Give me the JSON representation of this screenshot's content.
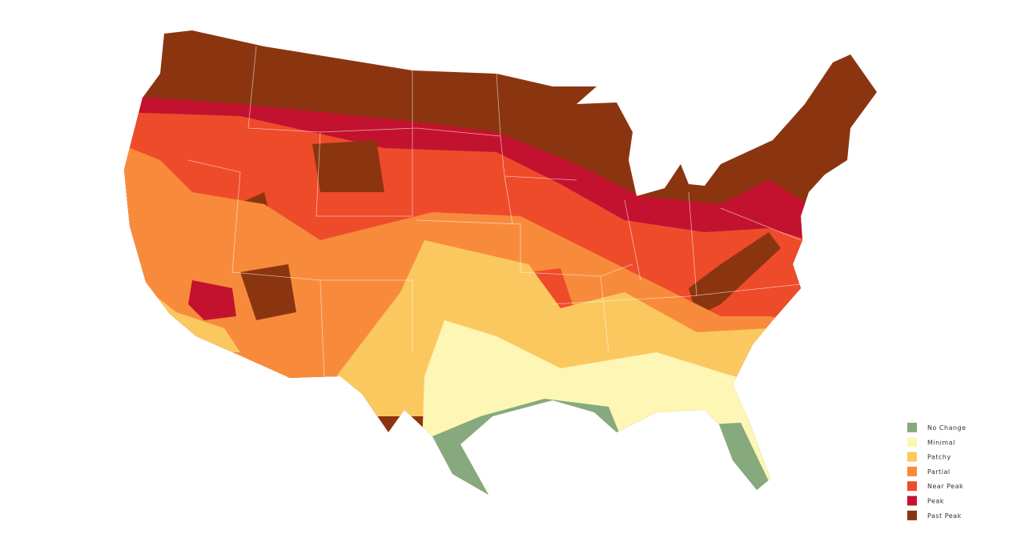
{
  "legend": {
    "items": [
      {
        "label": "No Change",
        "color": "#86a97e"
      },
      {
        "label": "Minimal",
        "color": "#fdf6b4"
      },
      {
        "label": "Patchy",
        "color": "#fbc860"
      },
      {
        "label": "Partial",
        "color": "#f88b3b"
      },
      {
        "label": "Near Peak",
        "color": "#ee4b2b"
      },
      {
        "label": "Peak",
        "color": "#c3122f"
      },
      {
        "label": "Past Peak",
        "color": "#8b3510"
      }
    ]
  }
}
